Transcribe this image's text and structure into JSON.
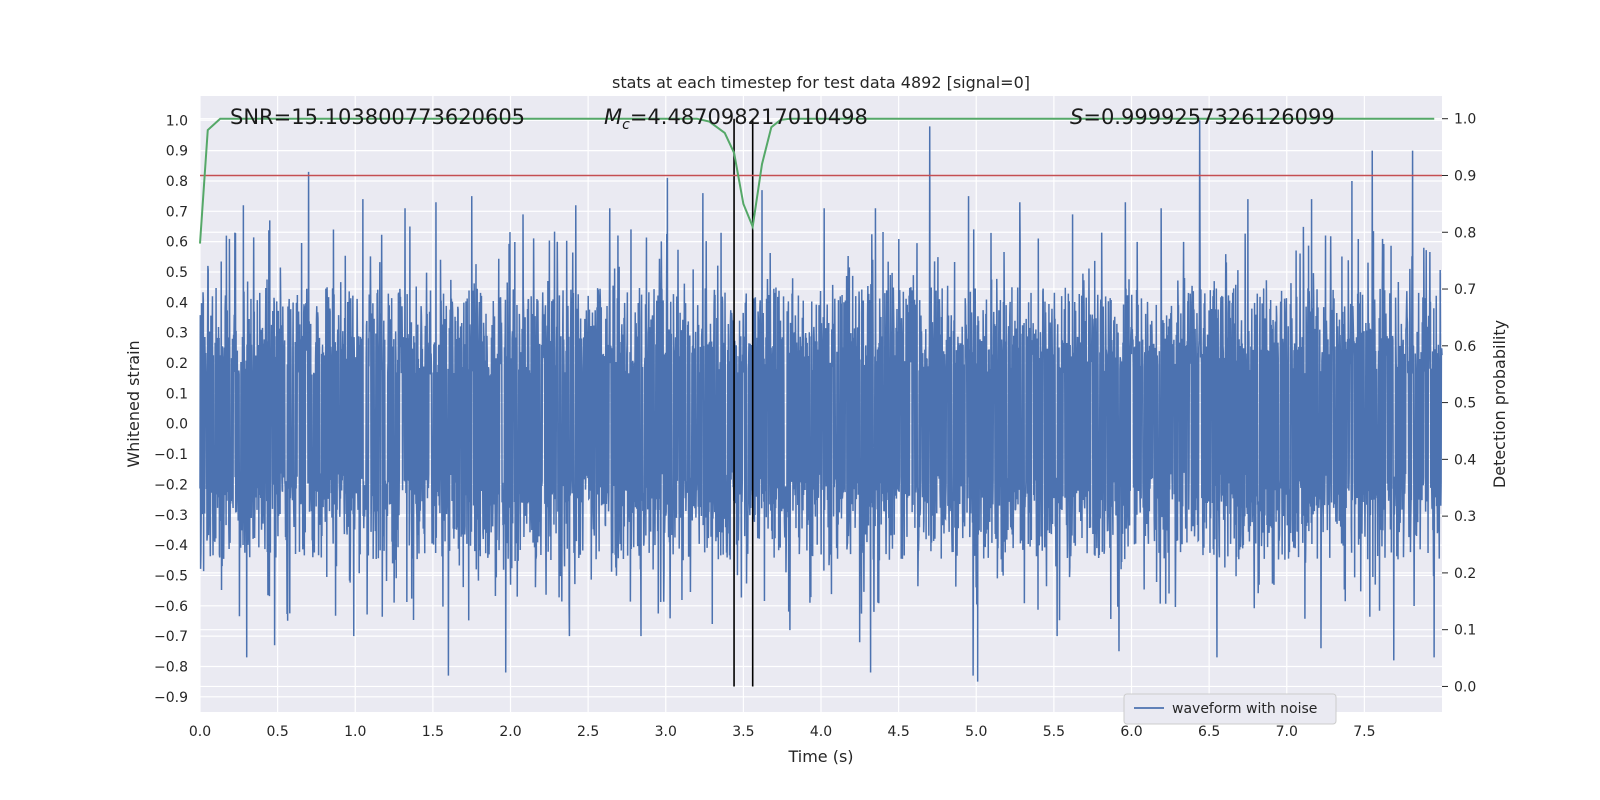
{
  "chart_data": {
    "type": "line",
    "title": "stats at each timestep for test data 4892 [signal=0]",
    "xlabel": "Time (s)",
    "ylabel": "Whitened strain",
    "y2label": "Detection probability",
    "xlim": [
      0.0,
      8.0
    ],
    "ylim": [
      -0.95,
      1.08
    ],
    "y2lim": [
      -0.045,
      1.04
    ],
    "xticks": [
      "0.0",
      "0.5",
      "1.0",
      "1.5",
      "2.0",
      "2.5",
      "3.0",
      "3.5",
      "4.0",
      "4.5",
      "5.0",
      "5.5",
      "6.0",
      "6.5",
      "7.0",
      "7.5"
    ],
    "xtick_values": [
      0.0,
      0.5,
      1.0,
      1.5,
      2.0,
      2.5,
      3.0,
      3.5,
      4.0,
      4.5,
      5.0,
      5.5,
      6.0,
      6.5,
      7.0,
      7.5
    ],
    "yticks": [
      "−0.9",
      "−0.8",
      "−0.7",
      "−0.6",
      "−0.5",
      "−0.4",
      "−0.3",
      "−0.2",
      "−0.1",
      "0.0",
      "0.1",
      "0.2",
      "0.3",
      "0.4",
      "0.5",
      "0.6",
      "0.7",
      "0.8",
      "0.9",
      "1.0"
    ],
    "ytick_values": [
      -0.9,
      -0.8,
      -0.7,
      -0.6,
      -0.5,
      -0.4,
      -0.3,
      -0.2,
      -0.1,
      0.0,
      0.1,
      0.2,
      0.3,
      0.4,
      0.5,
      0.6,
      0.7,
      0.8,
      0.9,
      1.0
    ],
    "y2ticks": [
      "0.0",
      "0.1",
      "0.2",
      "0.3",
      "0.4",
      "0.5",
      "0.6",
      "0.7",
      "0.8",
      "0.9",
      "1.0"
    ],
    "y2tick_values": [
      0.0,
      0.1,
      0.2,
      0.3,
      0.4,
      0.5,
      0.6,
      0.7,
      0.8,
      0.9,
      1.0
    ],
    "annotations": {
      "snr": "SNR=15.103800773620605",
      "mc_symbol": "M",
      "mc_sub": "c",
      "mc_value": "=4.487098217010498",
      "s_symbol": "S",
      "s_value": "=0.9999257326126099"
    },
    "legend": {
      "label": "waveform with noise",
      "position": "lower-right"
    },
    "threshold_line": {
      "value": 0.9,
      "axis": "y2",
      "color": "#c44e52"
    },
    "vertical_lines": [
      3.44,
      3.56
    ],
    "waveform": {
      "name": "waveform with noise",
      "color": "#4c72b0",
      "t_start": 0.0,
      "t_end": 8.0,
      "samples": 4096,
      "core_amplitude": 0.29,
      "spikes": [
        {
          "t": 0.05,
          "v": 0.52
        },
        {
          "t": 0.17,
          "v": 0.62
        },
        {
          "t": 0.28,
          "v": 0.72
        },
        {
          "t": 0.45,
          "v": 0.67
        },
        {
          "t": 0.7,
          "v": 0.83
        },
        {
          "t": 0.86,
          "v": 0.64
        },
        {
          "t": 1.05,
          "v": 0.74
        },
        {
          "t": 1.32,
          "v": 0.71
        },
        {
          "t": 1.52,
          "v": 0.73
        },
        {
          "t": 1.75,
          "v": 0.75
        },
        {
          "t": 2.08,
          "v": 0.69
        },
        {
          "t": 2.42,
          "v": 0.72
        },
        {
          "t": 2.64,
          "v": 0.71
        },
        {
          "t": 3.01,
          "v": 0.81
        },
        {
          "t": 3.24,
          "v": 0.76
        },
        {
          "t": 3.62,
          "v": 0.77
        },
        {
          "t": 4.02,
          "v": 0.71
        },
        {
          "t": 4.35,
          "v": 0.71
        },
        {
          "t": 4.7,
          "v": 0.98
        },
        {
          "t": 4.95,
          "v": 0.75
        },
        {
          "t": 5.28,
          "v": 0.73
        },
        {
          "t": 5.62,
          "v": 0.69
        },
        {
          "t": 5.96,
          "v": 0.73
        },
        {
          "t": 6.19,
          "v": 0.71
        },
        {
          "t": 6.44,
          "v": 1.0
        },
        {
          "t": 6.75,
          "v": 0.74
        },
        {
          "t": 7.16,
          "v": 0.74
        },
        {
          "t": 7.42,
          "v": 0.8
        },
        {
          "t": 7.55,
          "v": 0.9
        },
        {
          "t": 7.81,
          "v": 0.9
        },
        {
          "t": 0.3,
          "v": -0.77
        },
        {
          "t": 0.48,
          "v": -0.73
        },
        {
          "t": 0.99,
          "v": -0.7
        },
        {
          "t": 1.6,
          "v": -0.83
        },
        {
          "t": 1.97,
          "v": -0.82
        },
        {
          "t": 2.38,
          "v": -0.7
        },
        {
          "t": 2.84,
          "v": -0.7
        },
        {
          "t": 3.3,
          "v": -0.66
        },
        {
          "t": 3.8,
          "v": -0.68
        },
        {
          "t": 4.25,
          "v": -0.72
        },
        {
          "t": 4.32,
          "v": -0.82
        },
        {
          "t": 4.98,
          "v": -0.83
        },
        {
          "t": 5.01,
          "v": -0.85
        },
        {
          "t": 5.52,
          "v": -0.7
        },
        {
          "t": 5.92,
          "v": -0.75
        },
        {
          "t": 6.55,
          "v": -0.77
        },
        {
          "t": 7.22,
          "v": -0.74
        },
        {
          "t": 7.69,
          "v": -0.78
        },
        {
          "t": 7.95,
          "v": -0.77
        }
      ]
    },
    "detection_probability": {
      "name": "detection probability",
      "color": "#55a868",
      "t": [
        0.0,
        0.05,
        0.13,
        0.2,
        0.5,
        1.0,
        1.5,
        2.0,
        2.5,
        3.0,
        3.1,
        3.2,
        3.28,
        3.38,
        3.44,
        3.5,
        3.56,
        3.62,
        3.68,
        3.74,
        3.8,
        4.0,
        5.0,
        6.0,
        7.0,
        7.95
      ],
      "p": [
        0.78,
        0.98,
        1.0,
        1.0,
        1.0,
        1.0,
        1.0,
        1.0,
        1.0,
        1.0,
        1.0,
        1.0,
        0.995,
        0.975,
        0.94,
        0.85,
        0.81,
        0.92,
        0.985,
        0.998,
        1.0,
        1.0,
        1.0,
        1.0,
        1.0,
        1.0
      ]
    }
  }
}
